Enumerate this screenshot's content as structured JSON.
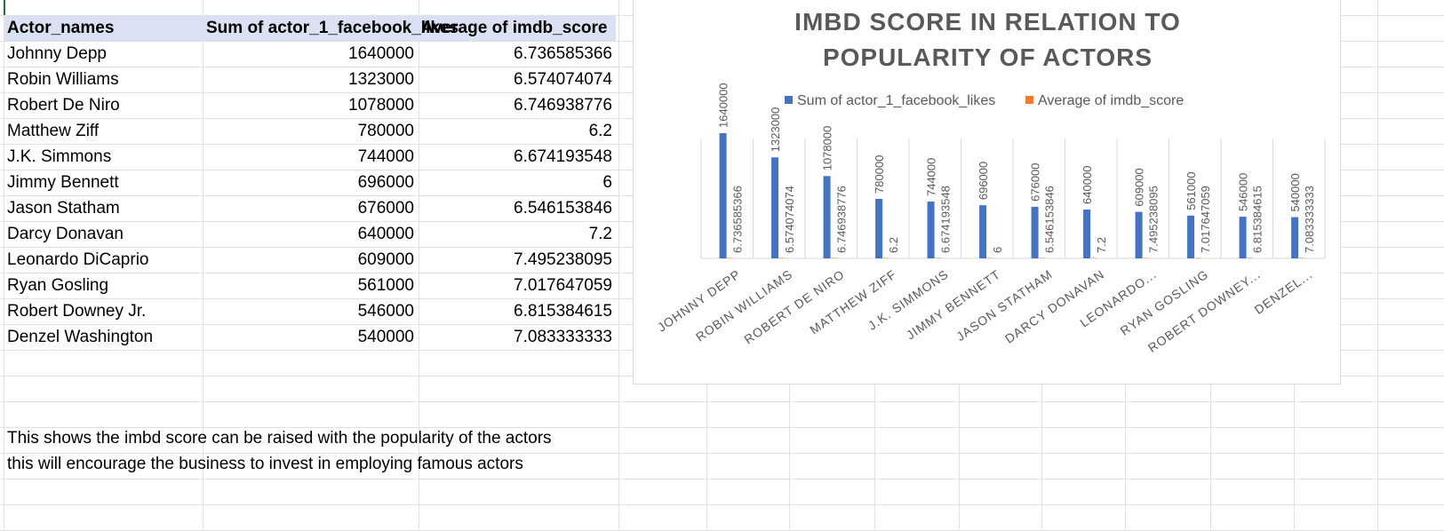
{
  "table": {
    "headers": [
      "Actor_names",
      "Sum of actor_1_facebook_likes",
      "Average of imdb_score"
    ],
    "rows": [
      [
        "Johnny Depp",
        "1640000",
        "6.736585366"
      ],
      [
        "Robin Williams",
        "1323000",
        "6.574074074"
      ],
      [
        "Robert De Niro",
        "1078000",
        "6.746938776"
      ],
      [
        "Matthew Ziff",
        "780000",
        "6.2"
      ],
      [
        "J.K. Simmons",
        "744000",
        "6.674193548"
      ],
      [
        "Jimmy Bennett",
        "696000",
        "6"
      ],
      [
        "Jason Statham",
        "676000",
        "6.546153846"
      ],
      [
        "Darcy Donavan",
        "640000",
        "7.2"
      ],
      [
        "Leonardo DiCaprio",
        "609000",
        "7.495238095"
      ],
      [
        "Ryan Gosling",
        "561000",
        "7.017647059"
      ],
      [
        "Robert Downey Jr.",
        "546000",
        "6.815384615"
      ],
      [
        "Denzel Washington",
        "540000",
        "7.083333333"
      ]
    ]
  },
  "notes": [
    "This shows the imbd score can be raised with the popularity of the actors",
    "this will encourage the business to invest in employing famous actors"
  ],
  "colors": {
    "likes": "#4472c4",
    "score": "#ed7d31",
    "header_fill": "#d9e1f2",
    "chart_text": "#595959"
  },
  "chart_data": {
    "type": "bar",
    "title_lines": [
      "IMBD SCORE IN RELATION TO",
      "POPULARITY OF ACTORS"
    ],
    "legend": [
      "Sum of actor_1_facebook_likes",
      "Average of imdb_score"
    ],
    "legend_placement": "top",
    "categories": [
      "JOHNNY DEPP",
      "ROBIN WILLIAMS",
      "ROBERT DE NIRO",
      "MATTHEW ZIFF",
      "J.K. SIMMONS",
      "JIMMY BENNETT",
      "JASON STATHAM",
      "DARCY DONAVAN",
      "LEONARDO...",
      "RYAN GOSLING",
      "ROBERT DOWNEY...",
      "DENZEL..."
    ],
    "series": [
      {
        "name": "Sum of actor_1_facebook_likes",
        "values": [
          1640000,
          1323000,
          1078000,
          780000,
          744000,
          696000,
          676000,
          640000,
          609000,
          561000,
          546000,
          540000
        ],
        "labels": [
          "1640000",
          "1323000",
          "1078000",
          "780000",
          "744000",
          "696000",
          "676000",
          "640000",
          "609000",
          "561000",
          "546000",
          "540000"
        ]
      },
      {
        "name": "Average of imdb_score",
        "values": [
          6.736585366,
          6.574074074,
          6.746938776,
          6.2,
          6.674193548,
          6,
          6.546153846,
          7.2,
          7.495238095,
          7.017647059,
          6.815384615,
          7.083333333
        ],
        "labels": [
          "6.736585366",
          "6.574074074",
          "6.746938776",
          "6.2",
          "6.674193548",
          "6",
          "6.546153846",
          "7.2",
          "7.495238095",
          "7.017647059",
          "6.815384615",
          "7.083333333"
        ]
      }
    ],
    "vertical_gridlines": true,
    "value_axis_shown": false
  }
}
